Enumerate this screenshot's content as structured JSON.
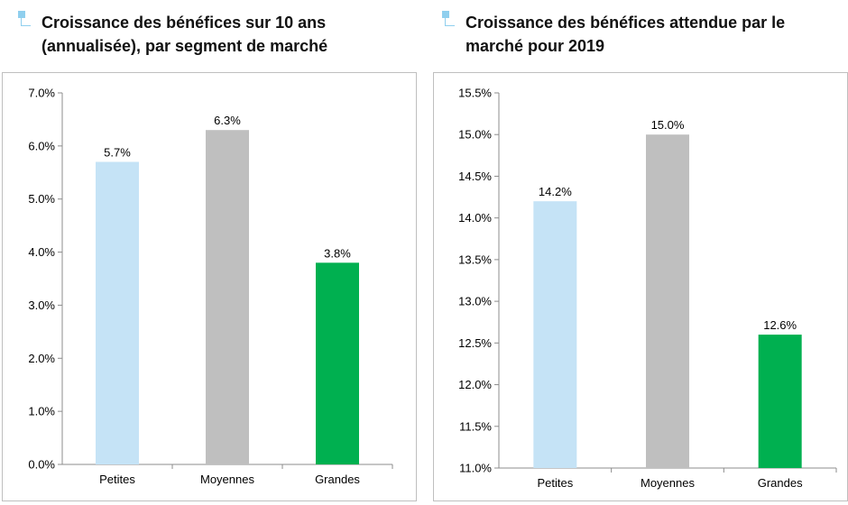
{
  "chart_data": [
    {
      "type": "bar",
      "title": "Croissance des bénéfices sur 10 ans (annualisée), par segment de marché",
      "categories": [
        "Petites",
        "Moyennes",
        "Grandes"
      ],
      "values": [
        5.7,
        6.3,
        3.8
      ],
      "data_labels": [
        "5.7%",
        "6.3%",
        "3.8%"
      ],
      "colors": [
        "#c5e3f6",
        "#bfbfbf",
        "#00b050"
      ],
      "ylim": [
        0,
        7
      ],
      "yticks": [
        0,
        1,
        2,
        3,
        4,
        5,
        6,
        7
      ],
      "ytick_labels": [
        "0.0%",
        "1.0%",
        "2.0%",
        "3.0%",
        "4.0%",
        "5.0%",
        "6.0%",
        "7.0%"
      ],
      "grid": false,
      "xlabel": "",
      "ylabel": ""
    },
    {
      "type": "bar",
      "title": "Croissance des bénéfices attendue par le marché pour 2019",
      "categories": [
        "Petites",
        "Moyennes",
        "Grandes"
      ],
      "values": [
        14.2,
        15.0,
        12.6
      ],
      "data_labels": [
        "14.2%",
        "15.0%",
        "12.6%"
      ],
      "colors": [
        "#c5e3f6",
        "#bfbfbf",
        "#00b050"
      ],
      "ylim": [
        11,
        15.5
      ],
      "yticks": [
        11,
        11.5,
        12,
        12.5,
        13,
        13.5,
        14,
        14.5,
        15,
        15.5
      ],
      "ytick_labels": [
        "11.0%",
        "11.5%",
        "12.0%",
        "12.5%",
        "13.0%",
        "13.5%",
        "14.0%",
        "14.5%",
        "15.0%",
        "15.5%"
      ],
      "grid": false,
      "xlabel": "",
      "ylabel": ""
    }
  ]
}
